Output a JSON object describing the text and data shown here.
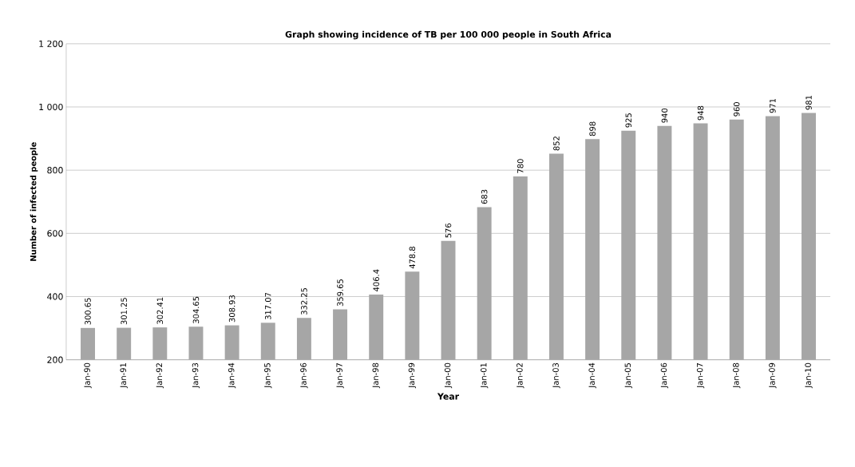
{
  "chart_data": {
    "type": "bar",
    "title": "Graph showing incidence of TB per 100 000 people in South Africa",
    "xlabel": "Year",
    "ylabel": "Number of infected people",
    "categories": [
      "Jan-90",
      "Jan-91",
      "Jan-92",
      "Jan-93",
      "Jan-94",
      "Jan-95",
      "Jan-96",
      "Jan-97",
      "Jan-98",
      "Jan-99",
      "Jan-00",
      "Jan-01",
      "Jan-02",
      "Jan-03",
      "Jan-04",
      "Jan-05",
      "Jan-06",
      "Jan-07",
      "Jan-08",
      "Jan-09",
      "Jan-10"
    ],
    "values": [
      300.65,
      301.25,
      302.41,
      304.65,
      308.93,
      317.07,
      332.25,
      359.65,
      406.4,
      478.8,
      576,
      683,
      780,
      852,
      898,
      925,
      940,
      948,
      960,
      971,
      981
    ],
    "value_labels": [
      "300.65",
      "301.25",
      "302.41",
      "304.65",
      "308.93",
      "317.07",
      "332.25",
      "359.65",
      "406.4",
      "478.8",
      "576",
      "683",
      "780",
      "852",
      "898",
      "925",
      "940",
      "948",
      "960",
      "971",
      "981"
    ],
    "color": "#a6a6a6",
    "ylim": [
      200,
      1200
    ],
    "yticks": [
      200,
      400,
      600,
      800,
      {
        "value": 1000,
        "label": "1 000"
      },
      {
        "value": 1200,
        "label": "1 200"
      }
    ],
    "grid": "y"
  }
}
